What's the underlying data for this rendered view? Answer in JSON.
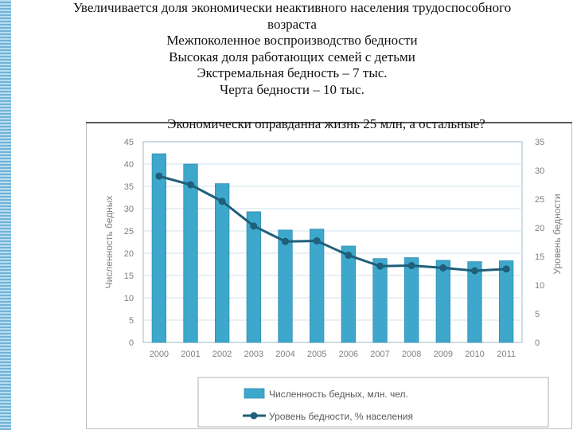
{
  "slide": {
    "lines": [
      "Увеличивается доля экономически неактивного населения трудоспособного",
      "возраста",
      "Межпоколенное воспроизводство бедности",
      "Высокая доля работающих семей с детьми",
      "Экстремальная бедность – 7 тыс.",
      "Черта бедности – 10 тыс.",
      "Экономически оправданна жизнь 25 млн, а остальные?"
    ]
  },
  "colors": {
    "bar": "#3ea8cc",
    "bar_edge": "#2b8cb0",
    "line": "#1f5f7a",
    "grid": "#cfe3ec",
    "axis_text": "#7f7f7f"
  },
  "chart_data": {
    "type": "bar",
    "categories": [
      "2000",
      "2001",
      "2002",
      "2003",
      "2004",
      "2005",
      "2006",
      "2007",
      "2008",
      "2009",
      "2010",
      "2011"
    ],
    "series": [
      {
        "name": "Численность бедных, млн. чел.",
        "type": "bar",
        "axis": "left",
        "values": [
          42.3,
          40.0,
          35.6,
          29.3,
          25.2,
          25.4,
          21.6,
          18.8,
          19.0,
          18.4,
          18.1,
          18.3
        ]
      },
      {
        "name": "Уровень бедности, % населения",
        "type": "line",
        "axis": "right",
        "values": [
          29.0,
          27.5,
          24.6,
          20.3,
          17.6,
          17.7,
          15.2,
          13.3,
          13.4,
          13.0,
          12.5,
          12.8
        ]
      }
    ],
    "ylabel": "Численность бедных",
    "y2label": "Уровень бедности",
    "ylim": [
      0,
      45
    ],
    "yticks": [
      "0",
      "5",
      "10",
      "15",
      "20",
      "25",
      "30",
      "35",
      "40",
      "45"
    ],
    "y2lim": [
      0,
      35
    ],
    "y2ticks": [
      "0",
      "5",
      "10",
      "15",
      "20",
      "25",
      "30",
      "35"
    ],
    "grid": true,
    "legend_placement": "bottom"
  }
}
